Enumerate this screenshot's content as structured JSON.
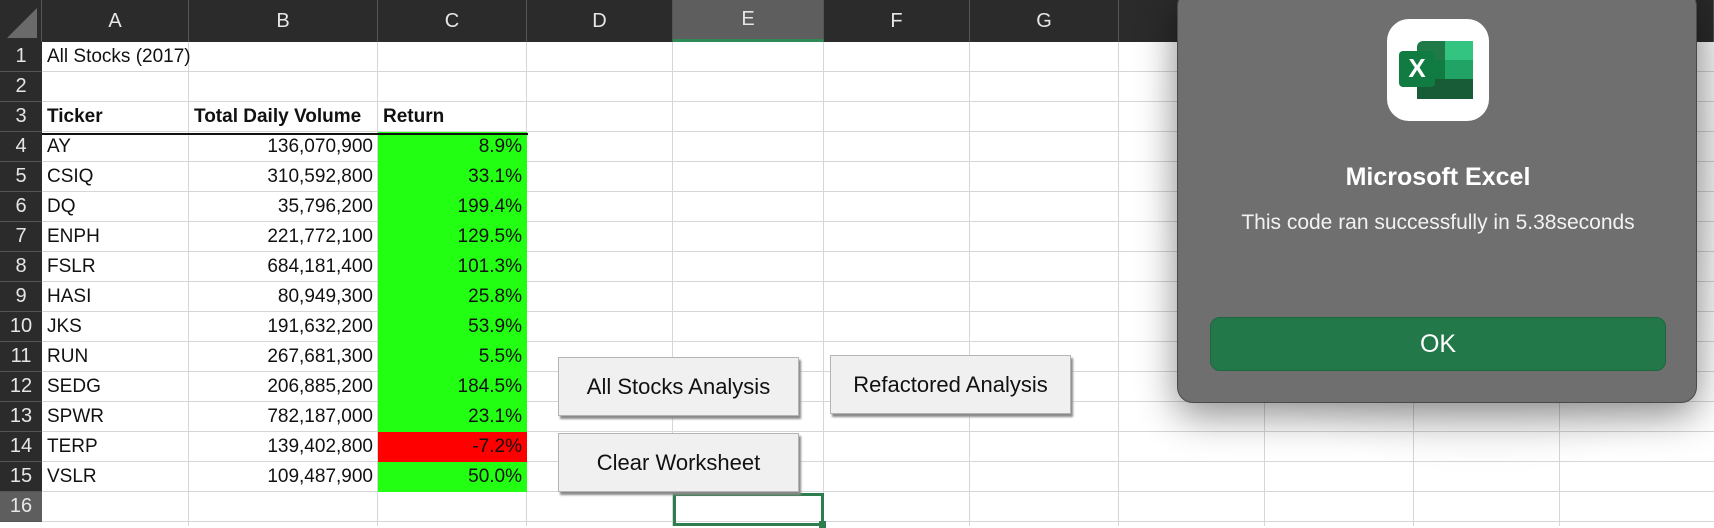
{
  "columns": [
    "A",
    "B",
    "C",
    "D",
    "E",
    "F",
    "G"
  ],
  "rows": [
    "1",
    "2",
    "3",
    "4",
    "5",
    "6",
    "7",
    "8",
    "9",
    "10",
    "11",
    "12",
    "13",
    "14",
    "15",
    "16"
  ],
  "sheet": {
    "title": "All Stocks (2017)",
    "headers": {
      "ticker": "Ticker",
      "volume": "Total Daily Volume",
      "return": "Return"
    },
    "data": [
      {
        "ticker": "AY",
        "volume": "136,070,900",
        "return": "8.9%",
        "status": "positive"
      },
      {
        "ticker": "CSIQ",
        "volume": "310,592,800",
        "return": "33.1%",
        "status": "positive"
      },
      {
        "ticker": "DQ",
        "volume": "35,796,200",
        "return": "199.4%",
        "status": "positive"
      },
      {
        "ticker": "ENPH",
        "volume": "221,772,100",
        "return": "129.5%",
        "status": "positive"
      },
      {
        "ticker": "FSLR",
        "volume": "684,181,400",
        "return": "101.3%",
        "status": "positive"
      },
      {
        "ticker": "HASI",
        "volume": "80,949,300",
        "return": "25.8%",
        "status": "positive"
      },
      {
        "ticker": "JKS",
        "volume": "191,632,200",
        "return": "53.9%",
        "status": "positive"
      },
      {
        "ticker": "RUN",
        "volume": "267,681,300",
        "return": "5.5%",
        "status": "positive"
      },
      {
        "ticker": "SEDG",
        "volume": "206,885,200",
        "return": "184.5%",
        "status": "positive"
      },
      {
        "ticker": "SPWR",
        "volume": "782,187,000",
        "return": "23.1%",
        "status": "positive"
      },
      {
        "ticker": "TERP",
        "volume": "139,402,800",
        "return": "-7.2%",
        "status": "negative"
      },
      {
        "ticker": "VSLR",
        "volume": "109,487,900",
        "return": "50.0%",
        "status": "positive"
      }
    ]
  },
  "buttons": {
    "all_stocks": "All Stocks Analysis",
    "refactored": "Refactored Analysis",
    "clear": "Clear Worksheet"
  },
  "dialog": {
    "app_name": "Microsoft Excel",
    "message": "This code ran successfully in 5.38seconds",
    "ok_label": "OK",
    "icon": "excel-icon",
    "icon_letter": "X"
  },
  "colors": {
    "positive": "#22ff12",
    "negative": "#ff0000",
    "excel_green": "#23784a"
  },
  "selection": {
    "column": "E",
    "row": "16"
  }
}
